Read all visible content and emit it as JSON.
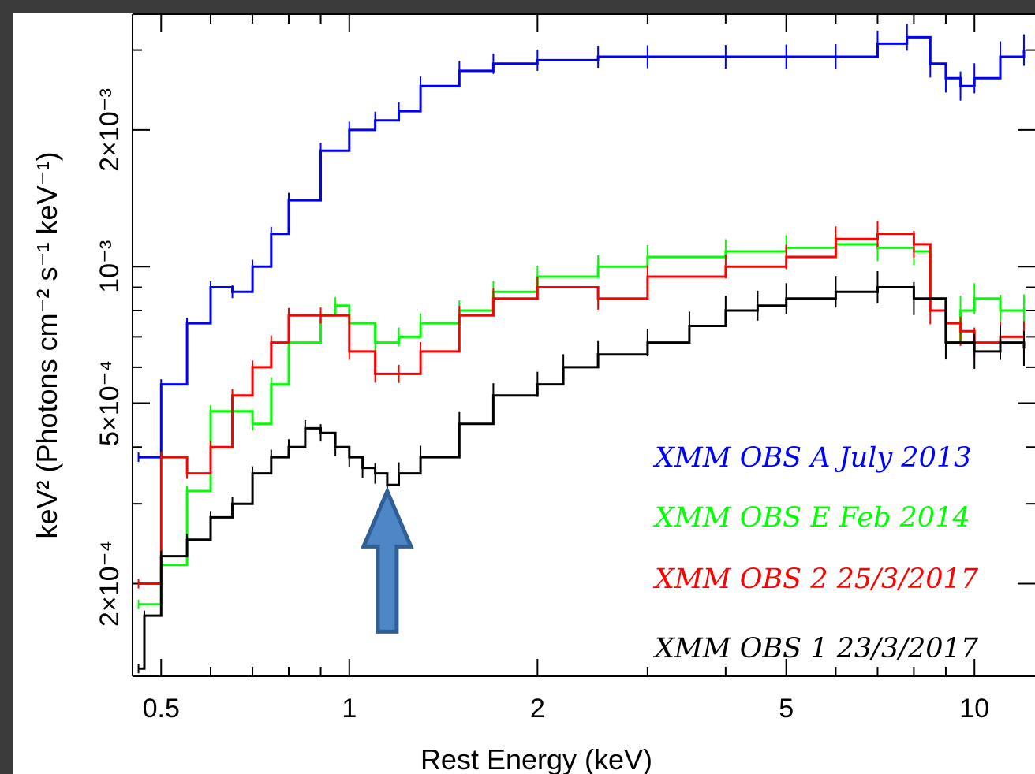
{
  "chart_data": {
    "type": "line",
    "xlabel": "Rest Energy (keV)",
    "ylabel": "keV² (Photons cm⁻² s⁻¹ keV⁻¹)",
    "x_scale": "log",
    "y_scale": "log",
    "xlim": [
      0.45,
      12.5
    ],
    "ylim": [
      0.000125,
      0.0036
    ],
    "x_ticks": [
      {
        "value": 0.5,
        "label": "0.5"
      },
      {
        "value": 1,
        "label": "1"
      },
      {
        "value": 2,
        "label": "2"
      },
      {
        "value": 5,
        "label": "5"
      },
      {
        "value": 10,
        "label": "10"
      }
    ],
    "y_ticks": [
      {
        "value": 0.0002,
        "label": "2×10⁻⁴"
      },
      {
        "value": 0.0005,
        "label": "5×10⁻⁴"
      },
      {
        "value": 0.001,
        "label": "10⁻³"
      },
      {
        "value": 0.002,
        "label": "2×10⁻³"
      }
    ],
    "annotation": {
      "type": "arrow",
      "points_to_x": 1.15,
      "points_to_y": 0.00033,
      "color": "#4f86c6"
    },
    "series": [
      {
        "name": "XMM OBS A July 2013",
        "color": "#0000ff",
        "x": [
          0.46,
          0.5,
          0.55,
          0.6,
          0.65,
          0.7,
          0.75,
          0.8,
          0.9,
          1.0,
          1.1,
          1.2,
          1.3,
          1.5,
          1.7,
          2.0,
          2.5,
          3.0,
          4.0,
          5.0,
          6.0,
          7.0,
          7.8,
          8.5,
          9.0,
          9.5,
          10.0,
          11.0,
          12.0
        ],
        "y": [
          0.00038,
          0.00055,
          0.00075,
          0.0009,
          0.00088,
          0.001,
          0.00118,
          0.0014,
          0.0018,
          0.002,
          0.0021,
          0.0022,
          0.0025,
          0.0027,
          0.0028,
          0.00285,
          0.0029,
          0.0029,
          0.0029,
          0.0029,
          0.0029,
          0.0031,
          0.0032,
          0.0028,
          0.0026,
          0.0025,
          0.0026,
          0.0029,
          0.003
        ]
      },
      {
        "name": "XMM OBS E Feb 2014",
        "color": "#00ff00",
        "x": [
          0.46,
          0.5,
          0.55,
          0.6,
          0.65,
          0.7,
          0.75,
          0.8,
          0.9,
          0.95,
          1.0,
          1.1,
          1.2,
          1.3,
          1.5,
          1.7,
          2.0,
          2.5,
          3.0,
          4.0,
          5.0,
          6.0,
          7.0,
          8.0,
          8.5,
          9.0,
          9.5,
          10.0,
          11.0,
          12.0
        ],
        "y": [
          0.00018,
          0.00022,
          0.00032,
          0.00048,
          0.00048,
          0.00045,
          0.00055,
          0.00068,
          0.00078,
          0.00082,
          0.00075,
          0.00068,
          0.0007,
          0.00075,
          0.0008,
          0.00088,
          0.00095,
          0.001,
          0.00105,
          0.00108,
          0.0011,
          0.00112,
          0.0011,
          0.00108,
          0.00085,
          0.00068,
          0.0008,
          0.00085,
          0.0008,
          0.0008
        ]
      },
      {
        "name": "XMM OBS 2 25/3/2017",
        "color": "#ff0000",
        "x": [
          0.46,
          0.5,
          0.55,
          0.6,
          0.65,
          0.7,
          0.75,
          0.8,
          0.9,
          1.0,
          1.1,
          1.2,
          1.3,
          1.5,
          1.7,
          2.0,
          2.5,
          3.0,
          4.0,
          5.0,
          6.0,
          7.0,
          8.0,
          8.5,
          9.0,
          9.5,
          10.0,
          11.0,
          12.0
        ],
        "y": [
          0.0002,
          0.00038,
          0.00035,
          0.0004,
          0.00052,
          0.0006,
          0.00068,
          0.00078,
          0.00078,
          0.00065,
          0.00058,
          0.00058,
          0.00065,
          0.00078,
          0.00085,
          0.0009,
          0.00085,
          0.00095,
          0.001,
          0.00105,
          0.00115,
          0.00118,
          0.00112,
          0.0008,
          0.00075,
          0.00072,
          0.00068,
          0.0007,
          0.0007
        ]
      },
      {
        "name": "XMM OBS 1 23/3/2017",
        "color": "#000000",
        "x": [
          0.46,
          0.47,
          0.5,
          0.55,
          0.6,
          0.65,
          0.7,
          0.75,
          0.8,
          0.85,
          0.9,
          0.95,
          1.0,
          1.05,
          1.1,
          1.15,
          1.2,
          1.3,
          1.5,
          1.7,
          2.0,
          2.2,
          2.5,
          3.0,
          3.5,
          4.0,
          4.5,
          5.0,
          6.0,
          7.0,
          8.0,
          9.0,
          10.0,
          11.0,
          12.0
        ],
        "y": [
          0.00013,
          0.00017,
          0.00023,
          0.00025,
          0.00028,
          0.0003,
          0.00035,
          0.00038,
          0.0004,
          0.00044,
          0.00043,
          0.0004,
          0.00038,
          0.00036,
          0.00035,
          0.00033,
          0.00035,
          0.00038,
          0.00045,
          0.00052,
          0.00055,
          0.0006,
          0.00064,
          0.00068,
          0.00074,
          0.0008,
          0.00082,
          0.00085,
          0.00088,
          0.0009,
          0.00085,
          0.00068,
          0.00065,
          0.00068,
          0.00066
        ]
      }
    ]
  }
}
